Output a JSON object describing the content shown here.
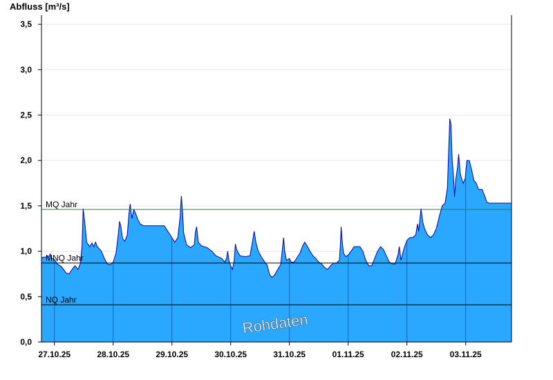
{
  "chart_data": {
    "type": "area",
    "title": "Abfluss [m³/s]",
    "ylim": [
      0,
      3.6
    ],
    "yticks": [
      {
        "value": 0.0,
        "label": "0,0"
      },
      {
        "value": 0.5,
        "label": "0,5"
      },
      {
        "value": 1.0,
        "label": "1,0"
      },
      {
        "value": 1.5,
        "label": "1,5"
      },
      {
        "value": 2.0,
        "label": "2,0"
      },
      {
        "value": 2.5,
        "label": "2,5"
      },
      {
        "value": 3.0,
        "label": "3,0"
      },
      {
        "value": 3.5,
        "label": "3,5"
      }
    ],
    "xlim": [
      26.78,
      34.78
    ],
    "days": [
      {
        "label": "27.10.25",
        "start": 27
      },
      {
        "label": "28.10.25",
        "start": 28
      },
      {
        "label": "29.10.25",
        "start": 29
      },
      {
        "label": "30.10.25",
        "start": 30
      },
      {
        "label": "31.10.25",
        "start": 31
      },
      {
        "label": "01.11.25",
        "start": 32
      },
      {
        "label": "02.11.25",
        "start": 33
      },
      {
        "label": "03.11.25",
        "start": 34
      }
    ],
    "reference_lines": [
      {
        "name": "MQ Jahr",
        "value": 1.46,
        "color": "#2e7d2e"
      },
      {
        "name": "MNQ Jahr",
        "value": 0.87,
        "color": "#000000"
      },
      {
        "name": "NQ Jahr",
        "value": 0.41,
        "color": "#000000"
      }
    ],
    "series": [
      {
        "values": [
          [
            26.78,
            0.93
          ],
          [
            26.9,
            0.94
          ],
          [
            26.93,
            0.97
          ],
          [
            26.96,
            0.92
          ],
          [
            27.0,
            0.91
          ],
          [
            27.05,
            0.86
          ],
          [
            27.12,
            0.83
          ],
          [
            27.2,
            0.76
          ],
          [
            27.25,
            0.75
          ],
          [
            27.3,
            0.8
          ],
          [
            27.35,
            0.84
          ],
          [
            27.4,
            0.8
          ],
          [
            27.44,
            0.86
          ],
          [
            27.47,
            1.05
          ],
          [
            27.49,
            1.47
          ],
          [
            27.52,
            1.3
          ],
          [
            27.55,
            1.1
          ],
          [
            27.6,
            1.05
          ],
          [
            27.64,
            1.09
          ],
          [
            27.67,
            1.05
          ],
          [
            27.7,
            1.1
          ],
          [
            27.73,
            1.05
          ],
          [
            27.76,
            1.03
          ],
          [
            27.8,
            1.0
          ],
          [
            27.85,
            0.92
          ],
          [
            27.9,
            0.86
          ],
          [
            27.95,
            0.85
          ],
          [
            28.0,
            0.88
          ],
          [
            28.05,
            0.98
          ],
          [
            28.09,
            1.2
          ],
          [
            28.11,
            1.33
          ],
          [
            28.13,
            1.28
          ],
          [
            28.16,
            1.14
          ],
          [
            28.2,
            1.11
          ],
          [
            28.24,
            1.18
          ],
          [
            28.27,
            1.42
          ],
          [
            28.29,
            1.52
          ],
          [
            28.32,
            1.36
          ],
          [
            28.35,
            1.46
          ],
          [
            28.38,
            1.42
          ],
          [
            28.42,
            1.35
          ],
          [
            28.46,
            1.3
          ],
          [
            28.52,
            1.28
          ],
          [
            28.6,
            1.28
          ],
          [
            28.7,
            1.28
          ],
          [
            28.8,
            1.28
          ],
          [
            28.87,
            1.28
          ],
          [
            28.93,
            1.22
          ],
          [
            29.0,
            1.15
          ],
          [
            29.05,
            1.1
          ],
          [
            29.1,
            1.15
          ],
          [
            29.14,
            1.38
          ],
          [
            29.16,
            1.61
          ],
          [
            29.18,
            1.45
          ],
          [
            29.2,
            1.2
          ],
          [
            29.25,
            1.07
          ],
          [
            29.32,
            1.04
          ],
          [
            29.38,
            1.07
          ],
          [
            29.4,
            1.21
          ],
          [
            29.42,
            1.27
          ],
          [
            29.45,
            1.1
          ],
          [
            29.5,
            1.06
          ],
          [
            29.6,
            1.04
          ],
          [
            29.68,
            1.0
          ],
          [
            29.75,
            0.95
          ],
          [
            29.85,
            0.92
          ],
          [
            29.9,
            0.88
          ],
          [
            29.93,
            0.92
          ],
          [
            29.95,
            1.0
          ],
          [
            29.97,
            0.9
          ],
          [
            30.0,
            0.84
          ],
          [
            30.03,
            0.8
          ],
          [
            30.06,
            0.9
          ],
          [
            30.08,
            1.08
          ],
          [
            30.1,
            1.02
          ],
          [
            30.13,
            0.98
          ],
          [
            30.16,
            0.95
          ],
          [
            30.25,
            0.94
          ],
          [
            30.33,
            0.95
          ],
          [
            30.38,
            1.14
          ],
          [
            30.4,
            1.22
          ],
          [
            30.43,
            1.1
          ],
          [
            30.47,
            1.0
          ],
          [
            30.52,
            0.94
          ],
          [
            30.58,
            0.88
          ],
          [
            30.62,
            0.85
          ],
          [
            30.66,
            0.75
          ],
          [
            30.7,
            0.71
          ],
          [
            30.75,
            0.74
          ],
          [
            30.8,
            0.8
          ],
          [
            30.85,
            0.85
          ],
          [
            30.88,
            1.02
          ],
          [
            30.9,
            1.15
          ],
          [
            30.92,
            1.0
          ],
          [
            30.95,
            0.9
          ],
          [
            31.0,
            0.92
          ],
          [
            31.03,
            0.88
          ],
          [
            31.08,
            0.88
          ],
          [
            31.12,
            0.92
          ],
          [
            31.18,
            0.98
          ],
          [
            31.22,
            1.05
          ],
          [
            31.26,
            1.1
          ],
          [
            31.3,
            1.06
          ],
          [
            31.35,
            1.0
          ],
          [
            31.4,
            0.95
          ],
          [
            31.45,
            0.92
          ],
          [
            31.5,
            0.88
          ],
          [
            31.55,
            0.86
          ],
          [
            31.6,
            0.82
          ],
          [
            31.65,
            0.8
          ],
          [
            31.7,
            0.84
          ],
          [
            31.75,
            0.87
          ],
          [
            31.8,
            0.87
          ],
          [
            31.85,
            0.9
          ],
          [
            31.87,
            1.1
          ],
          [
            31.88,
            1.27
          ],
          [
            31.9,
            1.1
          ],
          [
            31.92,
            0.98
          ],
          [
            31.96,
            0.94
          ],
          [
            32.0,
            0.96
          ],
          [
            32.05,
            1.0
          ],
          [
            32.1,
            1.05
          ],
          [
            32.15,
            1.05
          ],
          [
            32.2,
            1.05
          ],
          [
            32.25,
            1.0
          ],
          [
            32.3,
            0.9
          ],
          [
            32.35,
            0.84
          ],
          [
            32.4,
            0.84
          ],
          [
            32.45,
            0.92
          ],
          [
            32.5,
            1.0
          ],
          [
            32.55,
            1.05
          ],
          [
            32.6,
            1.02
          ],
          [
            32.65,
            0.95
          ],
          [
            32.7,
            0.88
          ],
          [
            32.75,
            0.86
          ],
          [
            32.8,
            0.86
          ],
          [
            32.85,
            0.97
          ],
          [
            32.87,
            1.05
          ],
          [
            32.9,
            0.9
          ],
          [
            32.93,
            0.98
          ],
          [
            32.96,
            1.05
          ],
          [
            33.0,
            1.12
          ],
          [
            33.05,
            1.15
          ],
          [
            33.1,
            1.15
          ],
          [
            33.15,
            1.18
          ],
          [
            33.18,
            1.3
          ],
          [
            33.2,
            1.22
          ],
          [
            33.22,
            1.35
          ],
          [
            33.24,
            1.47
          ],
          [
            33.27,
            1.32
          ],
          [
            33.3,
            1.25
          ],
          [
            33.35,
            1.18
          ],
          [
            33.4,
            1.15
          ],
          [
            33.45,
            1.18
          ],
          [
            33.5,
            1.25
          ],
          [
            33.55,
            1.38
          ],
          [
            33.6,
            1.5
          ],
          [
            33.65,
            1.53
          ],
          [
            33.69,
            1.7
          ],
          [
            33.71,
            2.1
          ],
          [
            33.73,
            2.46
          ],
          [
            33.75,
            2.4
          ],
          [
            33.77,
            2.0
          ],
          [
            33.79,
            1.85
          ],
          [
            33.81,
            1.6
          ],
          [
            33.83,
            1.78
          ],
          [
            33.86,
            1.92
          ],
          [
            33.88,
            2.07
          ],
          [
            33.91,
            1.85
          ],
          [
            33.94,
            1.78
          ],
          [
            33.96,
            1.75
          ],
          [
            33.99,
            1.8
          ],
          [
            34.02,
            2.0
          ],
          [
            34.06,
            2.0
          ],
          [
            34.1,
            1.9
          ],
          [
            34.14,
            1.78
          ],
          [
            34.18,
            1.75
          ],
          [
            34.22,
            1.68
          ],
          [
            34.28,
            1.68
          ],
          [
            34.33,
            1.6
          ],
          [
            34.36,
            1.54
          ],
          [
            34.4,
            1.53
          ],
          [
            34.78,
            1.53
          ]
        ]
      }
    ],
    "watermark": "Rohdaten",
    "colors": {
      "fill": "#2aa7ff",
      "line": "#0000aa",
      "grid": "#e6e6e6"
    }
  }
}
